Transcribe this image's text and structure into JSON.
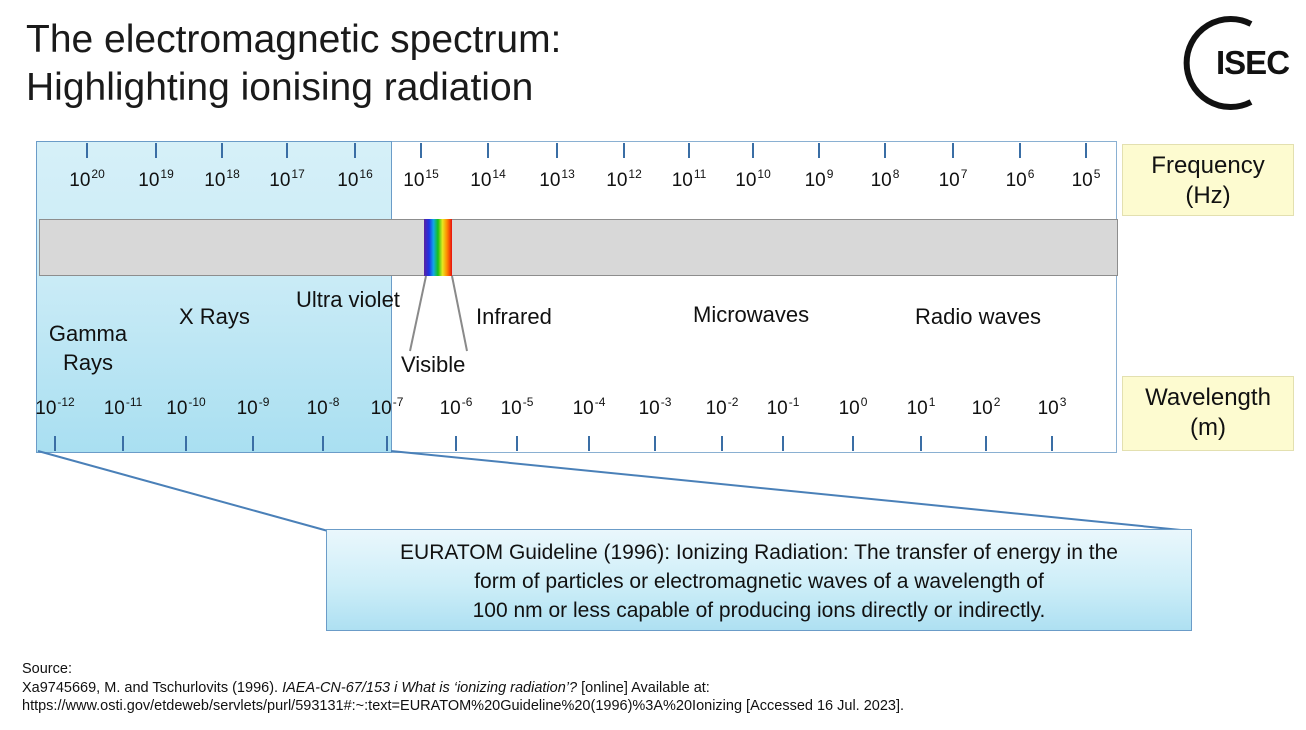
{
  "title": {
    "line1": "The electromagnetic spectrum:",
    "line2": "Highlighting ionising radiation"
  },
  "logo": {
    "text": "ISEC"
  },
  "frequency_axis": {
    "label_line1": "Frequency",
    "label_line2": "(Hz)",
    "ticks": [
      {
        "base": "10",
        "exp": "20"
      },
      {
        "base": "10",
        "exp": "19"
      },
      {
        "base": "10",
        "exp": "18"
      },
      {
        "base": "10",
        "exp": "17"
      },
      {
        "base": "10",
        "exp": "16"
      },
      {
        "base": "10",
        "exp": "15"
      },
      {
        "base": "10",
        "exp": "14"
      },
      {
        "base": "10",
        "exp": "13"
      },
      {
        "base": "10",
        "exp": "12"
      },
      {
        "base": "10",
        "exp": "11"
      },
      {
        "base": "10",
        "exp": "10"
      },
      {
        "base": "10",
        "exp": "9"
      },
      {
        "base": "10",
        "exp": "8"
      },
      {
        "base": "10",
        "exp": "7"
      },
      {
        "base": "10",
        "exp": "6"
      },
      {
        "base": "10",
        "exp": "5"
      }
    ]
  },
  "wavelength_axis": {
    "label_line1": "Wavelength",
    "label_line2": "(m)",
    "ticks": [
      {
        "base": "10",
        "exp": "-12"
      },
      {
        "base": "10",
        "exp": "-11"
      },
      {
        "base": "10",
        "exp": "-10"
      },
      {
        "base": "10",
        "exp": "-9"
      },
      {
        "base": "10",
        "exp": "-8"
      },
      {
        "base": "10",
        "exp": "-7"
      },
      {
        "base": "10",
        "exp": "-6"
      },
      {
        "base": "10",
        "exp": "-5"
      },
      {
        "base": "10",
        "exp": "-4"
      },
      {
        "base": "10",
        "exp": "-3"
      },
      {
        "base": "10",
        "exp": "-2"
      },
      {
        "base": "10",
        "exp": "-1"
      },
      {
        "base": "10",
        "exp": "0"
      },
      {
        "base": "10",
        "exp": "1"
      },
      {
        "base": "10",
        "exp": "2"
      },
      {
        "base": "10",
        "exp": "3"
      }
    ]
  },
  "regions": {
    "gamma_line1": "Gamma",
    "gamma_line2": "Rays",
    "xrays": "X Rays",
    "ultraviolet": "Ultra violet",
    "visible": "Visible",
    "infrared": "Infrared",
    "microwaves": "Microwaves",
    "radio": "Radio waves"
  },
  "callout": {
    "line1": "EURATOM Guideline (1996): Ionizing Radiation: The transfer of energy in the",
    "line2": "form of particles or electromagnetic waves of a wavelength of",
    "line3": "100 nm or less  capable of producing ions directly or indirectly."
  },
  "source": {
    "heading": "Source:",
    "citation_prefix": "Xa9745669, M. and Tschurlovits (1996). ",
    "citation_title": "IAEA-CN-67/153 i What is ‘ionizing radiation’?",
    "citation_suffix": " [online] Available at:",
    "url_line": "https://www.osti.gov/etdeweb/servlets/purl/593131#:~:text=EURATOM%20Guideline%20(1996)%3A%20Ionizing [Accessed 16 Jul. 2023]."
  },
  "colors": {
    "ionising_fill": "#c9ebf6",
    "box_border": "#6b9cc8",
    "axis_label_fill": "#fdfbd0",
    "bar_fill": "#d8d8d8"
  }
}
